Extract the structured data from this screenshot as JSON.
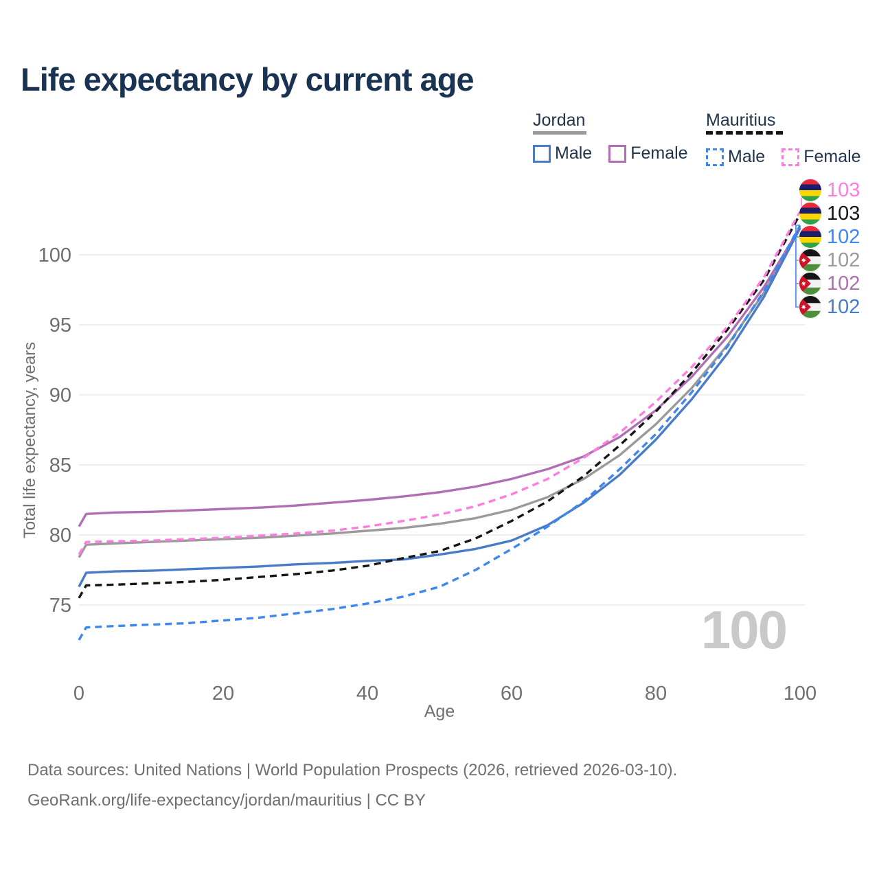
{
  "title": "Life expectancy by current age",
  "watermark": "100",
  "legend": {
    "jordan": {
      "label": "Jordan",
      "male_label": "Male",
      "female_label": "Female",
      "male_color": "#4a7bc9",
      "female_color": "#b16fb3",
      "underline_color": "#9a9a9a",
      "line_style": "solid"
    },
    "mauritius": {
      "label": "Mauritius",
      "male_label": "Male",
      "female_label": "Female",
      "male_color": "#3d87f0",
      "female_color": "#ff7ce0",
      "underline_color": "#141414",
      "line_style": "dashed"
    }
  },
  "chart_data": {
    "type": "line",
    "title": "Life expectancy by current age",
    "xlabel": "Age",
    "ylabel": "Total life expectancy, years",
    "xlim": [
      0,
      100
    ],
    "ylim": [
      72,
      104
    ],
    "xticks": [
      0,
      20,
      40,
      60,
      80,
      100
    ],
    "yticks": [
      75,
      80,
      85,
      90,
      95,
      100
    ],
    "grid": "horizontal",
    "legend_position": "top-right",
    "x": [
      0,
      1,
      5,
      10,
      15,
      20,
      25,
      30,
      35,
      40,
      45,
      50,
      55,
      60,
      65,
      70,
      75,
      80,
      85,
      90,
      95,
      100
    ],
    "series": [
      {
        "name": "Jordan Both sexes",
        "country": "Jordan",
        "sex": "both",
        "color": "#9a9a9a",
        "dash": false,
        "values": [
          78.4,
          79.3,
          79.4,
          79.5,
          79.6,
          79.7,
          79.8,
          79.95,
          80.1,
          80.3,
          80.5,
          80.8,
          81.2,
          81.8,
          82.7,
          84.0,
          85.7,
          87.9,
          90.5,
          93.6,
          97.3,
          102.0
        ]
      },
      {
        "name": "Jordan Female",
        "country": "Jordan",
        "sex": "female",
        "color": "#b16fb3",
        "dash": false,
        "values": [
          80.6,
          81.5,
          81.6,
          81.65,
          81.75,
          81.85,
          81.95,
          82.1,
          82.3,
          82.5,
          82.75,
          83.05,
          83.45,
          84.0,
          84.7,
          85.6,
          87.0,
          88.9,
          91.3,
          94.2,
          97.7,
          101.95
        ]
      },
      {
        "name": "Jordan Male",
        "country": "Jordan",
        "sex": "male",
        "color": "#4a7bc9",
        "dash": false,
        "values": [
          76.3,
          77.3,
          77.4,
          77.45,
          77.55,
          77.65,
          77.75,
          77.9,
          78.0,
          78.15,
          78.25,
          78.6,
          79.0,
          79.6,
          80.7,
          82.3,
          84.3,
          86.8,
          89.7,
          93.0,
          97.0,
          101.9
        ]
      },
      {
        "name": "Mauritius Both sexes",
        "country": "Mauritius",
        "sex": "both",
        "color": "#161616",
        "dash": true,
        "values": [
          75.5,
          76.4,
          76.45,
          76.55,
          76.65,
          76.8,
          77.0,
          77.2,
          77.45,
          77.8,
          78.35,
          78.85,
          79.75,
          81.0,
          82.4,
          84.2,
          86.4,
          88.8,
          91.6,
          94.7,
          98.2,
          102.9
        ]
      },
      {
        "name": "Mauritius Female",
        "country": "Mauritius",
        "sex": "female",
        "color": "#ff7ce0",
        "dash": true,
        "values": [
          78.6,
          79.5,
          79.55,
          79.6,
          79.7,
          79.8,
          79.95,
          80.1,
          80.3,
          80.6,
          81.0,
          81.45,
          82.05,
          82.9,
          84.0,
          85.5,
          87.3,
          89.5,
          92.0,
          94.9,
          98.4,
          103.1
        ]
      },
      {
        "name": "Mauritius Male",
        "country": "Mauritius",
        "sex": "male",
        "color": "#3d87f0",
        "dash": true,
        "values": [
          72.5,
          73.4,
          73.5,
          73.6,
          73.7,
          73.9,
          74.1,
          74.4,
          74.7,
          75.1,
          75.6,
          76.3,
          77.5,
          79.0,
          80.6,
          82.4,
          84.7,
          87.2,
          90.2,
          93.5,
          97.4,
          102.1
        ]
      }
    ]
  },
  "end_labels": [
    {
      "country": "Mauritius",
      "flag": "mauritius",
      "value": "103",
      "color": "#ff7ce0"
    },
    {
      "country": "Mauritius",
      "flag": "mauritius",
      "value": "103",
      "color": "#161616"
    },
    {
      "country": "Mauritius",
      "flag": "mauritius",
      "value": "102",
      "color": "#3d87f0"
    },
    {
      "country": "Jordan",
      "flag": "jordan",
      "value": "102",
      "color": "#9a9a9a"
    },
    {
      "country": "Jordan",
      "flag": "jordan",
      "value": "102",
      "color": "#b16fb3"
    },
    {
      "country": "Jordan",
      "flag": "jordan",
      "value": "102",
      "color": "#4a7bc9"
    }
  ],
  "footer": {
    "line1": "Data sources: United Nations | World Population Prospects (2026, retrieved 2026-03-10).",
    "line2": "GeoRank.org/life-expectancy/jordan/mauritius | CC BY"
  },
  "styles": {
    "title_color": "#1b3352",
    "legend_text": "#22354f",
    "axis_text": "#6f6f6f",
    "grid_color": "#eaeaea",
    "watermark_color": "#c9c9c9"
  }
}
